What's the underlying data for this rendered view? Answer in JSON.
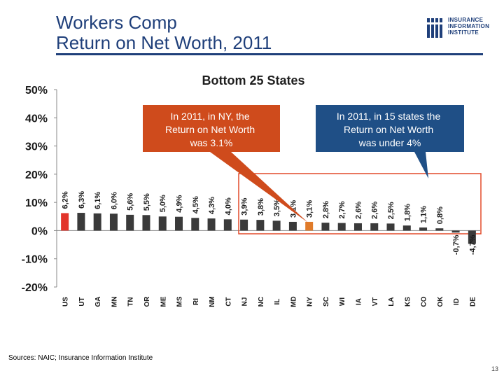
{
  "header": {
    "title_line1": "Workers Comp",
    "title_line2": "Return on Net Worth, 2011",
    "logo_lines": [
      "INSURANCE",
      "INFORMATION",
      "INSTITUTE"
    ]
  },
  "colors": {
    "title": "#1f3f7a",
    "bar_default": "#3a3a3a",
    "bar_us": "#e2342b",
    "bar_ny": "#e07b2a",
    "callout_fill": "#cf4b1c",
    "callout_text": "#ffffff",
    "highlight_box": "#e24a2a"
  },
  "chart_data": {
    "type": "bar",
    "title": "Bottom 25 States",
    "categories": [
      "US",
      "UT",
      "GA",
      "MN",
      "TN",
      "OR",
      "ME",
      "MS",
      "RI",
      "NM",
      "CT",
      "NJ",
      "NC",
      "IL",
      "MD",
      "NY",
      "SC",
      "WI",
      "IA",
      "VT",
      "LA",
      "KS",
      "CO",
      "OK",
      "ID",
      "DE"
    ],
    "values": [
      6.2,
      6.3,
      6.1,
      6.0,
      5.6,
      5.5,
      5.0,
      4.9,
      4.5,
      4.3,
      4.0,
      3.9,
      3.8,
      3.5,
      3.1,
      3.1,
      2.8,
      2.7,
      2.6,
      2.6,
      2.5,
      1.8,
      1.1,
      0.8,
      -0.7,
      -4.7
    ],
    "data_labels": [
      "6,2%",
      "6,3%",
      "6,1%",
      "6,0%",
      "5,6%",
      "5,5%",
      "5,0%",
      "4,9%",
      "4,5%",
      "4,3%",
      "4,0%",
      "3,9%",
      "3,8%",
      "3,5%",
      "3,1%",
      "3,1%",
      "2,8%",
      "2,7%",
      "2,6%",
      "2,6%",
      "2,5%",
      "1,8%",
      "1,1%",
      "0,8%",
      "-0,7%",
      "-4,7%"
    ],
    "y_ticks": [
      50,
      40,
      30,
      20,
      10,
      0,
      -10,
      -20
    ],
    "y_tick_labels": [
      "50%",
      "40%",
      "30%",
      "20%",
      "10%",
      "0%",
      "-10%",
      "-20%"
    ],
    "ylim": [
      -20,
      50
    ],
    "legend": "none",
    "grid": false,
    "annotations": [
      "In 2011, in NY, the Return on Net Worth was 3.1%",
      "In 2011, in 15 states the Return on Net Worth was under 4%"
    ]
  },
  "footer": {
    "source": "Sources:  NAIC; Insurance Information Institute",
    "page_number": "13"
  }
}
